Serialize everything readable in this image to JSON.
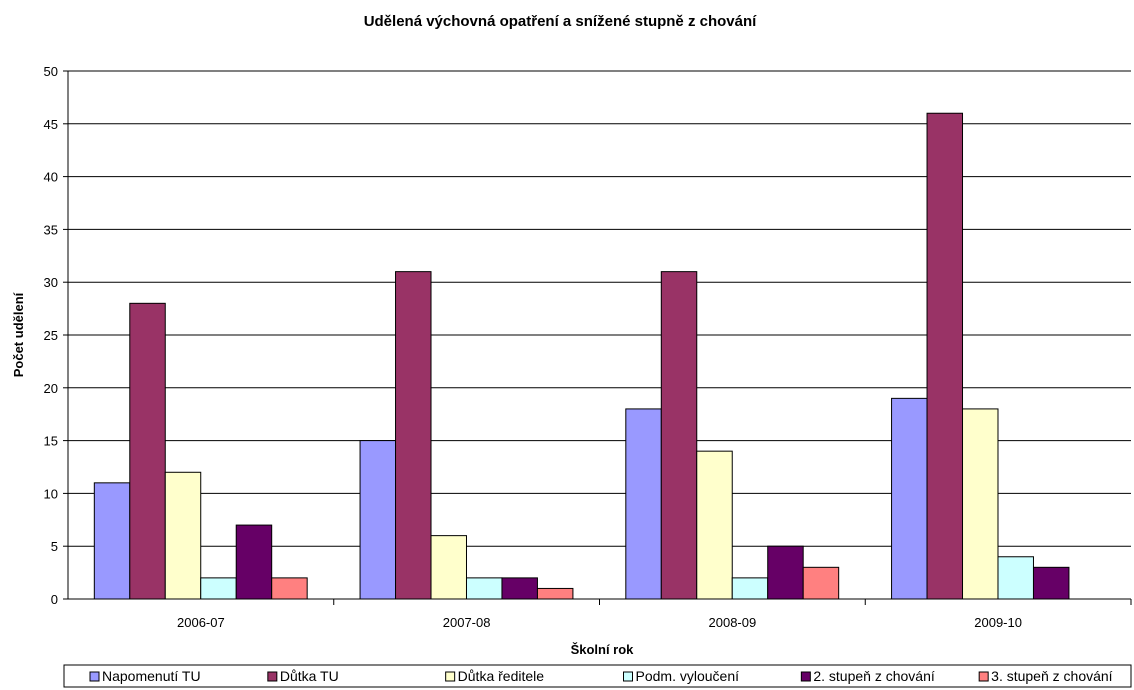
{
  "chart_data": {
    "type": "bar",
    "title": "Udělená výchovná opatření a snížené stupně z chování",
    "xlabel": "Školní rok",
    "ylabel": "Počet udělení",
    "ylim": [
      0,
      50
    ],
    "yticks": [
      0,
      5,
      10,
      15,
      20,
      25,
      30,
      35,
      40,
      45,
      50
    ],
    "grid": true,
    "legend_position": "bottom",
    "categories": [
      "2006-07",
      "2007-08",
      "2008-09",
      "2009-10"
    ],
    "series": [
      {
        "name": "Napomenutí TU",
        "color": "#9999ff",
        "values": [
          11,
          15,
          18,
          19
        ]
      },
      {
        "name": "Důtka TU",
        "color": "#993366",
        "values": [
          28,
          31,
          31,
          46
        ]
      },
      {
        "name": "Důtka ředitele",
        "color": "#ffffcc",
        "values": [
          12,
          6,
          14,
          18
        ]
      },
      {
        "name": "Podm. vyloučení",
        "color": "#ccffff",
        "values": [
          2,
          2,
          2,
          4
        ]
      },
      {
        "name": "2. stupeň z chování",
        "color": "#660066",
        "values": [
          7,
          2,
          5,
          3
        ]
      },
      {
        "name": "3. stupeň z chování",
        "color": "#ff8080",
        "values": [
          2,
          1,
          3,
          0
        ]
      }
    ]
  }
}
